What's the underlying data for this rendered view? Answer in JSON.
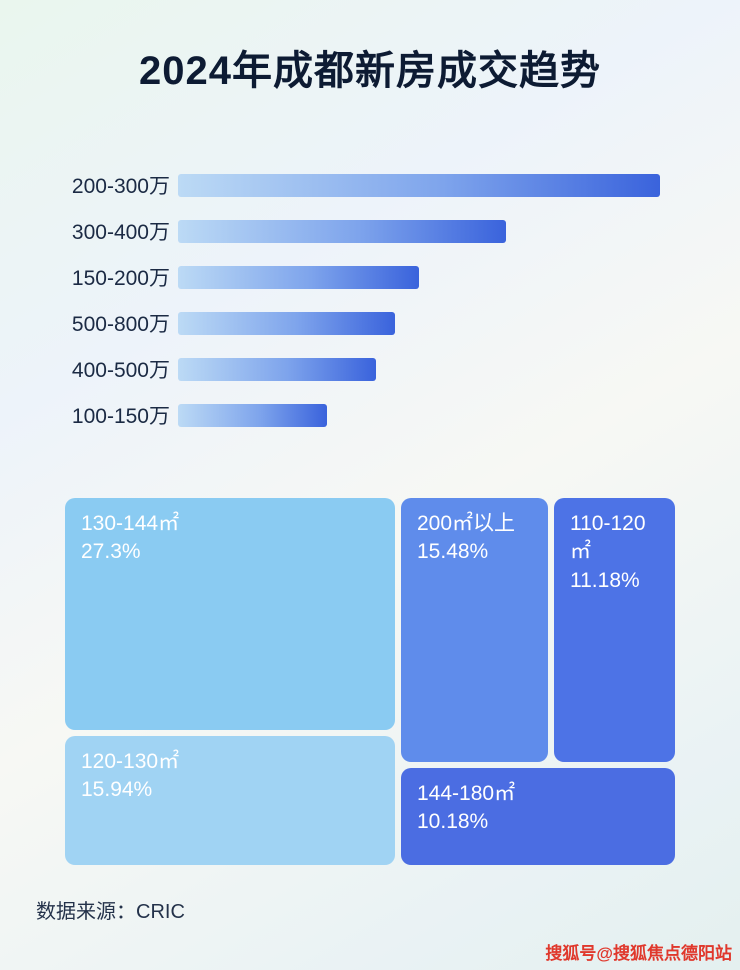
{
  "title": "2024年成都新房成交趋势",
  "footer": {
    "source_label": "数据来源：CRIC"
  },
  "watermark": "搜狐号@搜狐焦点德阳站",
  "colors": {
    "bar_gradient_start": "#bcdaf5",
    "bar_gradient_end": "#3a63dc",
    "title_color": "#0d1b33",
    "watermark_color": "#e0382c"
  },
  "chart_data": [
    {
      "type": "bar",
      "orientation": "horizontal",
      "title": "2024年成都新房成交趋势",
      "categories": [
        "200-300万",
        "300-400万",
        "150-200万",
        "500-800万",
        "400-500万",
        "100-150万"
      ],
      "values": [
        100,
        68,
        50,
        45,
        41,
        31
      ],
      "value_note": "no numeric labels shown in image; values are relative bar lengths (longest bar = 100)",
      "xlabel": "",
      "ylabel": "",
      "xlim": [
        0,
        100
      ],
      "grid": false,
      "legend": false
    },
    {
      "type": "treemap",
      "title": "",
      "blocks": [
        {
          "label": "130-144㎡",
          "pct": "27.3%",
          "value": 27.3,
          "color": "#8acbf2"
        },
        {
          "label": "120-130㎡",
          "pct": "15.94%",
          "value": 15.94,
          "color": "#a0d3f3"
        },
        {
          "label": "200㎡以上",
          "pct": "15.48%",
          "value": 15.48,
          "color": "#5f8ceb"
        },
        {
          "label": "110-120㎡",
          "pct": "11.18%",
          "value": 11.18,
          "color": "#4d73e6"
        },
        {
          "label": "144-180㎡",
          "pct": "10.18%",
          "value": 10.18,
          "color": "#4b6de2"
        }
      ]
    }
  ]
}
